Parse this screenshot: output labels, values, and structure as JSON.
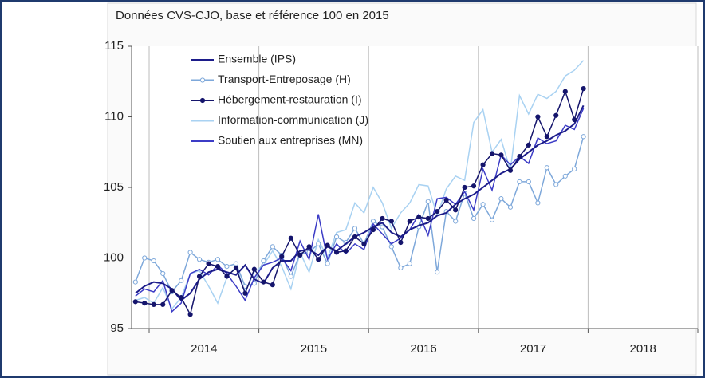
{
  "chart_data": {
    "type": "line",
    "title": "Données CVS-CJO, base et référence 100 en 2015",
    "categories": [
      "2014",
      "2015",
      "2016",
      "2017",
      "2018"
    ],
    "x": [
      2013.875,
      2013.958,
      2014.042,
      2014.125,
      2014.208,
      2014.292,
      2014.375,
      2014.458,
      2014.542,
      2014.625,
      2014.708,
      2014.792,
      2014.875,
      2014.958,
      2015.042,
      2015.125,
      2015.208,
      2015.292,
      2015.375,
      2015.458,
      2015.542,
      2015.625,
      2015.708,
      2015.792,
      2015.875,
      2015.958,
      2016.042,
      2016.125,
      2016.208,
      2016.292,
      2016.375,
      2016.458,
      2016.542,
      2016.625,
      2016.708,
      2016.792,
      2016.875,
      2016.958,
      2017.042,
      2017.125,
      2017.208,
      2017.292,
      2017.375,
      2017.458,
      2017.542,
      2017.625,
      2017.708,
      2017.792,
      2017.875,
      2017.958
    ],
    "xlim": [
      2013.84,
      2019.0
    ],
    "xticks": [
      2014,
      2015,
      2016,
      2017,
      2018,
      2019
    ],
    "ylim": [
      95,
      115
    ],
    "yticks": [
      95,
      100,
      105,
      110,
      115
    ],
    "grid": true,
    "legend": "upper left",
    "series": [
      {
        "name": "Ensemble (IPS)",
        "color": "#1c1c8a",
        "marker": null,
        "values": [
          97.5,
          98,
          98.3,
          98.2,
          97.8,
          97,
          97.5,
          98.5,
          99,
          99.2,
          99,
          98.8,
          99.5,
          98.5,
          98.2,
          99.3,
          99.8,
          99.8,
          100.5,
          100.6,
          100.2,
          100.8,
          100.5,
          101,
          101.5,
          101.8,
          102.2,
          102.5,
          101.8,
          101.5,
          102,
          102.3,
          102.5,
          103,
          103.2,
          103.8,
          104.2,
          104.5,
          105,
          105.5,
          106,
          106.3,
          107,
          107.5,
          108,
          108.3,
          108.7,
          109,
          109.5,
          110.8
        ]
      },
      {
        "name": "Transport-Entreposage (H)",
        "color": "#7ea8da",
        "marker": "open-circle",
        "values": [
          98.3,
          100,
          99.8,
          98.9,
          97.6,
          98.4,
          100.4,
          99.9,
          99.7,
          99.9,
          99.4,
          99.6,
          98.0,
          98.2,
          99.8,
          100.8,
          100.2,
          98.7,
          100.3,
          100.4,
          101.0,
          99.6,
          101.5,
          101.1,
          102.1,
          101.0,
          102.6,
          102.2,
          100.8,
          99.3,
          99.6,
          102.2,
          104.0,
          99.0,
          103.3,
          102.6,
          104.6,
          102.8,
          103.8,
          102.7,
          104.2,
          103.6,
          105.4,
          105.4,
          103.9,
          106.4,
          105.2,
          105.8,
          106.3,
          108.6
        ]
      },
      {
        "name": "Hébergement-restauration (I)",
        "color": "#15156c",
        "marker": "filled-circle",
        "values": [
          96.9,
          96.8,
          96.7,
          96.7,
          97.7,
          97.2,
          96.0,
          98.7,
          99.6,
          99.4,
          98.7,
          99.3,
          97.5,
          99.2,
          98.3,
          98.1,
          100.1,
          101.4,
          100.2,
          100.8,
          99.9,
          100.9,
          100.4,
          100.5,
          101.5,
          101.0,
          102.0,
          102.8,
          102.6,
          101.1,
          102.6,
          102.9,
          102.8,
          103.3,
          104.1,
          103.4,
          105.0,
          105.1,
          106.6,
          107.4,
          107.3,
          106.2,
          107.2,
          108.0,
          110.0,
          108.6,
          110.1,
          111.8,
          109.8,
          112.0
        ]
      },
      {
        "name": "Information-communication (J)",
        "color": "#a9d2f2",
        "marker": null,
        "values": [
          97.0,
          97.2,
          96.8,
          97.9,
          96.4,
          97.2,
          98.9,
          99.1,
          98.0,
          96.8,
          98.6,
          99.4,
          97.6,
          99.0,
          99.5,
          100.5,
          99.4,
          97.8,
          100.4,
          99.0,
          101.3,
          100.0,
          101.8,
          102.0,
          103.9,
          103.2,
          105.0,
          103.9,
          102.1,
          103.2,
          103.9,
          105.2,
          105.1,
          103.0,
          104.9,
          105.8,
          105.5,
          109.6,
          110.5,
          107.5,
          108.4,
          106.2,
          111.5,
          110.2,
          111.6,
          111.3,
          111.8,
          112.9,
          113.3,
          114.0
        ]
      },
      {
        "name": "Soutien aux entreprises (MN)",
        "color": "#3c3cc6",
        "marker": null,
        "values": [
          97.3,
          97.8,
          97.6,
          98.4,
          96.2,
          96.8,
          98.9,
          99.2,
          98.8,
          99.5,
          98.9,
          98.0,
          97.0,
          98.6,
          99.5,
          99.7,
          100.0,
          99.1,
          101.2,
          99.9,
          103.1,
          99.9,
          101.0,
          100.3,
          101.0,
          100.6,
          102.4,
          101.7,
          101.0,
          101.4,
          102.0,
          103.1,
          101.6,
          104.2,
          104.3,
          103.8,
          104.7,
          103.4,
          106.3,
          104.8,
          107.3,
          106.6,
          107.2,
          106.7,
          108.5,
          108.1,
          108.3,
          109.4,
          109.1,
          110.6
        ]
      }
    ]
  }
}
